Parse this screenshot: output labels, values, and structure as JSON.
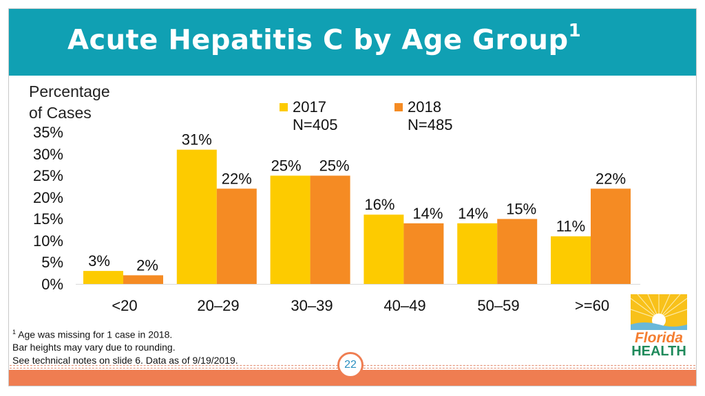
{
  "slide": {
    "title": "Acute Hepatitis C by Age Group",
    "title_superscript": "1",
    "page_number": "22"
  },
  "chart_data": {
    "type": "bar",
    "title": "Acute Hepatitis C by Age Group",
    "ylabel": "Percentage of Cases",
    "ylabel_lines": [
      "Percentage",
      "of Cases"
    ],
    "xlabel": "",
    "ylim": [
      0,
      35
    ],
    "yticks": [
      "35%",
      "30%",
      "25%",
      "20%",
      "15%",
      "10%",
      "5%",
      "0%"
    ],
    "categories": [
      "<20",
      "20–29",
      "30–39",
      "40–49",
      "50–59",
      ">=60"
    ],
    "series": [
      {
        "name": "2017",
        "n": "N=405",
        "color": "#fdcb00",
        "values": [
          3,
          31,
          25,
          16,
          14,
          11
        ],
        "labels": [
          "3%",
          "31%",
          "25%",
          "16%",
          "14%",
          "11%"
        ]
      },
      {
        "name": "2018",
        "n": "N=485",
        "color": "#f58b23",
        "values": [
          2,
          22,
          25,
          14,
          15,
          22
        ],
        "labels": [
          "2%",
          "22%",
          "25%",
          "14%",
          "15%",
          "22%"
        ]
      }
    ],
    "legend": "top"
  },
  "footnote": {
    "marker": "1",
    "line1": " Age was missing for 1 case in 2018.",
    "line2": "Bar heights may vary due to rounding.",
    "line3": "See technical notes on slide 6. Data as of 9/19/2019."
  },
  "logo": {
    "line1": "Florida",
    "line2": "HEALTH"
  },
  "colors": {
    "header": "#10a0b3",
    "accent": "#ef7d51",
    "bar2017": "#fdcb00",
    "bar2018": "#f58b23"
  }
}
